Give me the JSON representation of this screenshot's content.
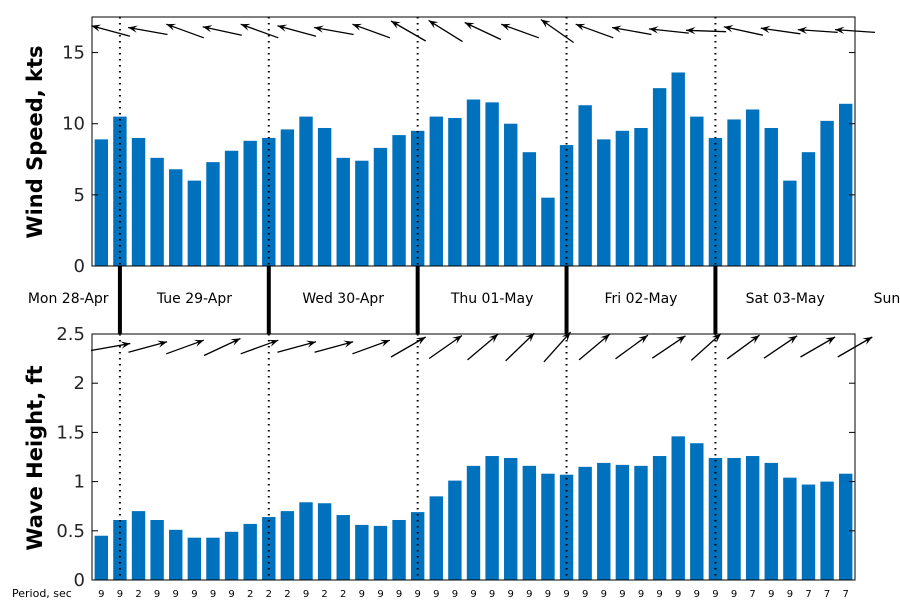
{
  "chart_data": [
    {
      "type": "bar",
      "ylabel": "Wind Speed, kts",
      "ylim": [
        0,
        17.5
      ],
      "yticks": [
        "0",
        "5",
        "10",
        "15"
      ],
      "values": [
        8.9,
        10.5,
        9.0,
        7.6,
        6.8,
        6.0,
        7.3,
        8.1,
        8.8,
        9.0,
        9.6,
        10.5,
        9.7,
        7.6,
        7.4,
        8.3,
        9.2,
        9.5,
        10.5,
        10.4,
        11.7,
        11.5,
        10.0,
        8.0,
        4.8,
        8.5,
        11.3,
        8.9,
        9.5,
        9.7,
        12.5,
        13.6,
        10.5,
        9.0,
        10.3,
        11.0,
        9.7,
        6.0,
        8.0,
        10.2,
        11.4
      ],
      "arrow_direction_deg": [
        165,
        168,
        170,
        172,
        160,
        165,
        168,
        170,
        160,
        162,
        165,
        168,
        170,
        165,
        160,
        155,
        150,
        152,
        148,
        150,
        155,
        158,
        160,
        150,
        145,
        140,
        160,
        165,
        170,
        172,
        174,
        176,
        178,
        172,
        168,
        170,
        172,
        174,
        176,
        178,
        176
      ],
      "bar_color": "#0072bd",
      "arrow_color": "#000000"
    },
    {
      "type": "bar",
      "ylabel": "Wave Height, ft",
      "ylim": [
        0,
        2.5
      ],
      "yticks": [
        "0",
        "0.5",
        "1",
        "1.5",
        "2",
        "2.5"
      ],
      "values": [
        0.45,
        0.61,
        0.7,
        0.61,
        0.51,
        0.43,
        0.43,
        0.49,
        0.57,
        0.64,
        0.7,
        0.79,
        0.78,
        0.66,
        0.56,
        0.55,
        0.61,
        0.69,
        0.85,
        1.01,
        1.16,
        1.26,
        1.24,
        1.16,
        1.08,
        1.07,
        1.15,
        1.19,
        1.17,
        1.16,
        1.26,
        1.46,
        1.39,
        1.24,
        1.24,
        1.26,
        1.19,
        1.04,
        0.97,
        1.0,
        1.08
      ],
      "arrow_direction_deg": [
        10,
        12,
        15,
        18,
        20,
        22,
        25,
        28,
        20,
        18,
        15,
        12,
        15,
        18,
        20,
        25,
        30,
        30,
        35,
        38,
        40,
        42,
        44,
        45,
        48,
        42,
        40,
        38,
        36,
        35,
        34,
        40,
        42,
        38,
        36,
        35,
        34,
        32,
        30,
        28,
        30
      ],
      "bar_color": "#0072bd",
      "arrow_color": "#000000"
    }
  ],
  "days": [
    "Mon 28-Apr",
    "Tue 29-Apr",
    "Wed 30-Apr",
    "Thu 01-May",
    "Fri 02-May",
    "Sat 03-May",
    "Sun"
  ],
  "period_label": "Period, sec",
  "periods": [
    "9",
    "9",
    "2",
    "9",
    "9",
    "9",
    "9",
    "9",
    "2",
    "2",
    "2",
    "9",
    "2",
    "2",
    "9",
    "9",
    "9",
    "9",
    "9",
    "9",
    "9",
    "9",
    "9",
    "9",
    "9",
    "9",
    "9",
    "9",
    "9",
    "9",
    "9",
    "9",
    "9",
    "9",
    "9",
    "7",
    "9",
    "9",
    "7",
    "7",
    "7"
  ]
}
